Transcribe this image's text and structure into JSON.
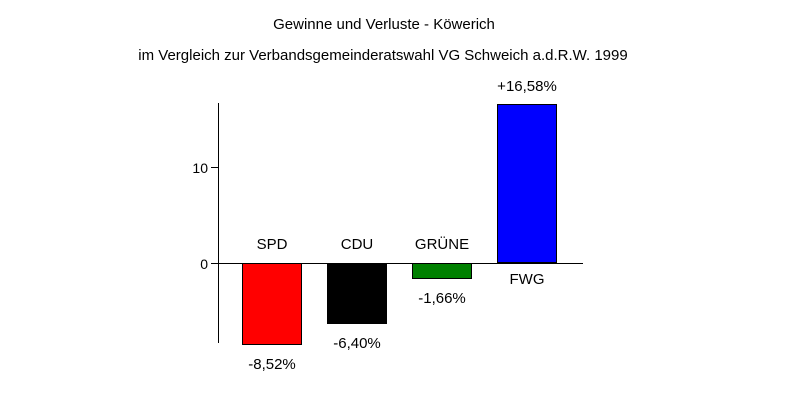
{
  "chart_data": {
    "type": "bar",
    "title": "Gewinne und Verluste - Köwerich",
    "subtitle": "im Vergleich zur Verbandsgemeinderatswahl VG Schweich a.d.R.W. 1999",
    "categories": [
      "SPD",
      "CDU",
      "GRÜNE",
      "FWG"
    ],
    "values": [
      -8.52,
      -6.4,
      -1.66,
      16.58
    ],
    "value_labels": [
      "-8,52%",
      "-6,40%",
      "-1,66%",
      "+16,58%"
    ],
    "bar_colors": [
      "#ff0000",
      "#000000",
      "#008000",
      "#0000ff"
    ],
    "y_ticks": [
      {
        "value": 0,
        "label": "0"
      },
      {
        "value": 10,
        "label": "10"
      }
    ],
    "ylim": [
      -10,
      17.5
    ],
    "xlabel": "",
    "ylabel": "",
    "grid": false,
    "legend": false,
    "background_color": "#ffffff",
    "axis_color": "#000000",
    "text_color": "#000000"
  }
}
